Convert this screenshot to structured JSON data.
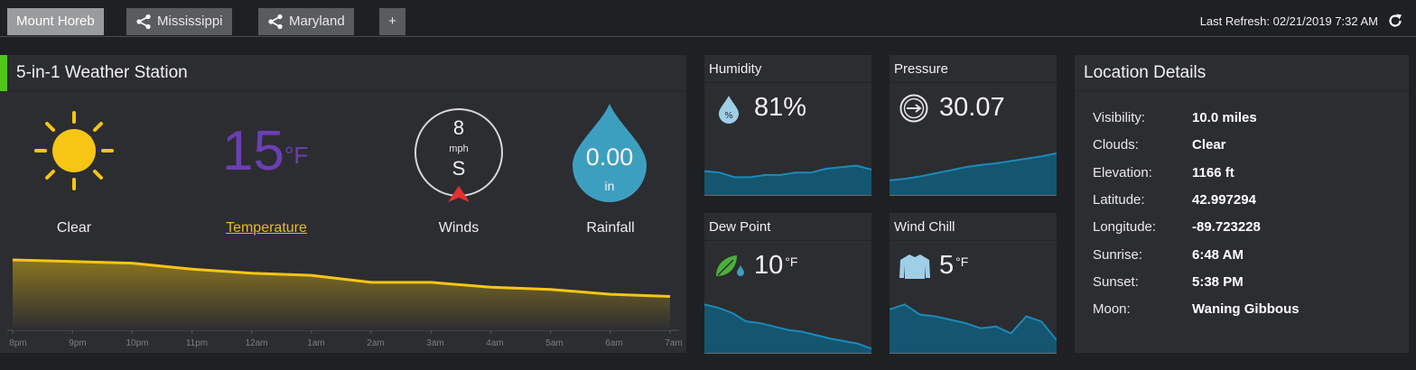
{
  "tabs": [
    {
      "label": "Mount Horeb",
      "active": true,
      "shared": false
    },
    {
      "label": "Mississippi",
      "active": false,
      "shared": true
    },
    {
      "label": "Maryland",
      "active": false,
      "shared": true
    },
    {
      "label": "+",
      "active": false,
      "shared": false
    }
  ],
  "last_refresh": "Last Refresh: 02/21/2019 7:32 AM",
  "station": {
    "title": "5-in-1 Weather Station",
    "condition_label": "Clear",
    "temperature_value": "15",
    "temperature_unit": "°F",
    "temperature_label": "Temperature",
    "wind_speed": "8",
    "wind_unit": "mph",
    "wind_direction": "S",
    "wind_label": "Winds",
    "rain_value": "0.00",
    "rain_unit": "in",
    "rain_label": "Rainfall",
    "time_ticks": [
      "8pm",
      "9pm",
      "10pm",
      "11pm",
      "12am",
      "1am",
      "2am",
      "3am",
      "4am",
      "5am",
      "6am",
      "7am"
    ],
    "temperature_trend": [
      26,
      25.4,
      24.8,
      22.6,
      21.1,
      20.3,
      17.7,
      17.7,
      15.9,
      15.1,
      13.3,
      12.5
    ]
  },
  "humidity": {
    "title": "Humidity",
    "value": "81%",
    "trend": [
      32,
      30,
      24,
      24,
      27,
      27,
      30,
      30,
      35,
      37,
      39,
      34
    ]
  },
  "pressure": {
    "title": "Pressure",
    "value": "30.07",
    "trend": [
      20,
      22,
      25,
      29,
      33,
      37,
      40,
      42,
      45,
      48,
      51,
      55
    ]
  },
  "dew_point": {
    "title": "Dew Point",
    "value": "10",
    "unit": "°F",
    "trend": [
      58,
      54,
      48,
      38,
      36,
      32,
      28,
      26,
      22,
      18,
      15,
      12,
      6
    ]
  },
  "wind_chill": {
    "title": "Wind Chill",
    "value": "5",
    "unit": "°F",
    "trend": [
      52,
      58,
      46,
      44,
      40,
      36,
      30,
      32,
      24,
      44,
      38,
      16
    ]
  },
  "location": {
    "title": "Location Details",
    "rows": [
      {
        "key": "Visibility:",
        "value": "10.0 miles"
      },
      {
        "key": "Clouds:",
        "value": "Clear"
      },
      {
        "key": "Elevation:",
        "value": "1166 ft"
      },
      {
        "key": "Latitude:",
        "value": "42.997294"
      },
      {
        "key": "Longitude:",
        "value": "-89.723228"
      },
      {
        "key": "Sunrise:",
        "value": "6:48 AM"
      },
      {
        "key": "Sunset:",
        "value": "5:38 PM"
      },
      {
        "key": "Moon:",
        "value": "Waning Gibbous"
      }
    ]
  },
  "colors": {
    "accent_green": "#52c41a",
    "sun_yellow": "#f7c614",
    "temp_purple": "#6b3fb5",
    "rain_blue": "#3d9fc0",
    "chart_blue": "#1c8ab8"
  }
}
